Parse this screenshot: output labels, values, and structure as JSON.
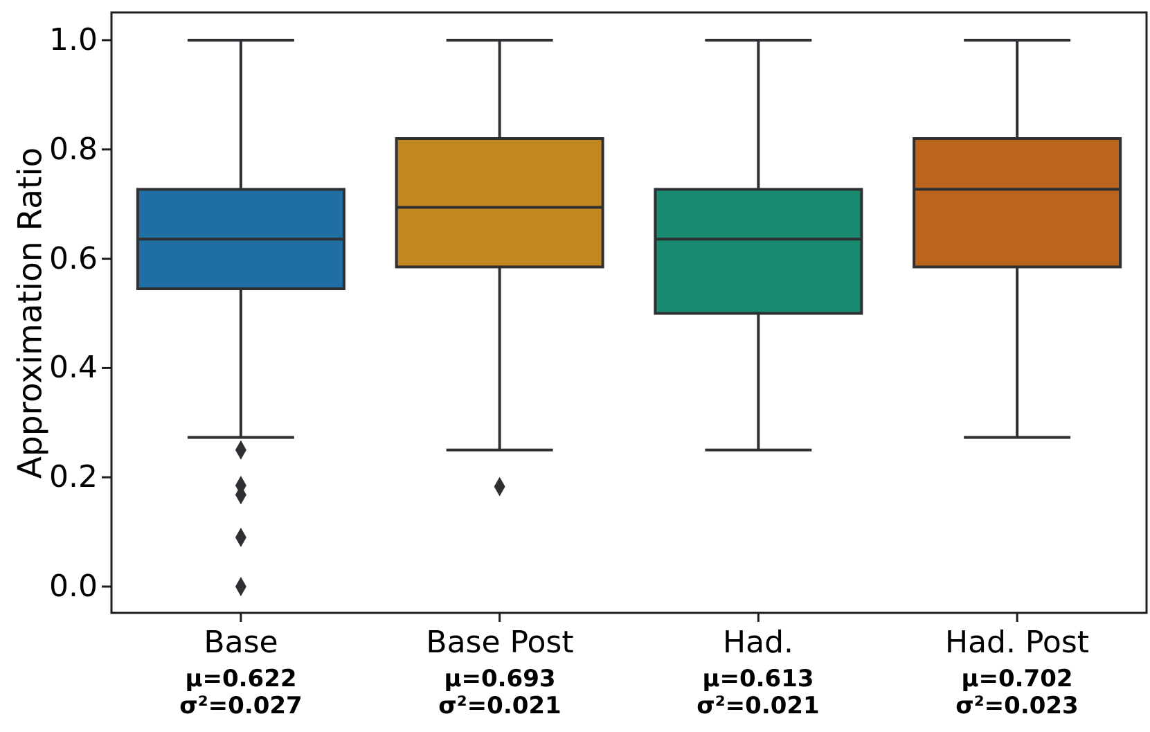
{
  "y_axis": {
    "label": "Approximation Ratio",
    "tick_labels": [
      "1.0",
      "0.8",
      "0.6",
      "0.4",
      "0.2",
      "0.0"
    ],
    "tick_values": [
      1.0,
      0.8,
      0.6,
      0.4,
      0.2,
      0.0
    ]
  },
  "x_axis": {
    "categories": [
      "Base",
      "Base Post",
      "Had.",
      "Had. Post"
    ]
  },
  "chart_data": {
    "type": "box",
    "title": "",
    "xlabel": "",
    "ylabel": "Approximation Ratio",
    "ylim": [
      -0.05,
      1.05
    ],
    "grid": false,
    "legend": "none",
    "categories": [
      "Base",
      "Base Post",
      "Had.",
      "Had. Post"
    ],
    "boxes": [
      {
        "label": "Base",
        "color": "#1f6fa5",
        "whisker_high": 1.0,
        "q3": 0.727,
        "median": 0.636,
        "q1": 0.545,
        "whisker_low": 0.273,
        "outliers": [
          0.25,
          0.185,
          0.168,
          0.09,
          0.0
        ],
        "mean": 0.622,
        "variance": 0.027,
        "mean_label": "μ=0.622",
        "variance_label": "σ²=0.027"
      },
      {
        "label": "Base Post",
        "color": "#c0881f",
        "whisker_high": 1.0,
        "q3": 0.82,
        "median": 0.694,
        "q1": 0.585,
        "whisker_low": 0.25,
        "outliers": [
          0.183
        ],
        "mean": 0.693,
        "variance": 0.021,
        "mean_label": "μ=0.693",
        "variance_label": "σ²=0.021"
      },
      {
        "label": "Had.",
        "color": "#178a70",
        "whisker_high": 1.0,
        "q3": 0.727,
        "median": 0.636,
        "q1": 0.5,
        "whisker_low": 0.25,
        "outliers": [],
        "mean": 0.613,
        "variance": 0.021,
        "mean_label": "μ=0.613",
        "variance_label": "σ²=0.021"
      },
      {
        "label": "Had. Post",
        "color": "#ba641e",
        "whisker_high": 1.0,
        "q3": 0.82,
        "median": 0.727,
        "q1": 0.585,
        "whisker_low": 0.273,
        "outliers": [],
        "mean": 0.702,
        "variance": 0.023,
        "mean_label": "μ=0.702",
        "variance_label": "σ²=0.023"
      }
    ],
    "style": {
      "line_color": "#2e3033",
      "spine_color": "#1c1e20",
      "background": "#ffffff",
      "outlier_marker": "diamond"
    }
  }
}
